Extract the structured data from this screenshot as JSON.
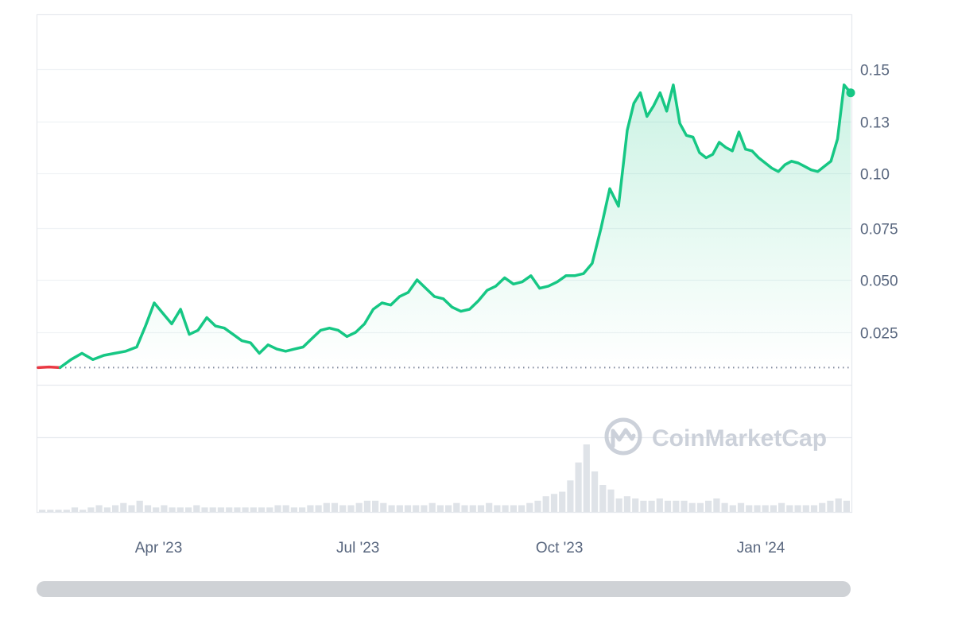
{
  "chart_data": {
    "type": "area",
    "x_type": "date",
    "x_range": [
      "2023-02-05",
      "2024-02-11"
    ],
    "y_ticks": [
      0.025,
      0.05,
      0.075,
      0.1,
      0.13,
      0.15
    ],
    "y_tick_labels": [
      "0.025",
      "0.050",
      "0.075",
      "0.10",
      "0.13",
      "0.15"
    ],
    "x_ticks": [
      "2023-04-01",
      "2023-07-01",
      "2023-10-01",
      "2024-01-01"
    ],
    "x_tick_labels": [
      "Apr '23",
      "Jul '23",
      "Oct '23",
      "Jan '24"
    ],
    "baseline": 0.0082,
    "series": [
      {
        "values_x": [
          "2023-02-05",
          "2023-02-10",
          "2023-02-15",
          "2023-02-20",
          "2023-02-25",
          "2023-03-02",
          "2023-03-07",
          "2023-03-12",
          "2023-03-17",
          "2023-03-22",
          "2023-03-26",
          "2023-03-30",
          "2023-04-03",
          "2023-04-07",
          "2023-04-11",
          "2023-04-15",
          "2023-04-19",
          "2023-04-23",
          "2023-04-27",
          "2023-05-01",
          "2023-05-05",
          "2023-05-09",
          "2023-05-13",
          "2023-05-17",
          "2023-05-21",
          "2023-05-25",
          "2023-05-29",
          "2023-06-02",
          "2023-06-06",
          "2023-06-10",
          "2023-06-14",
          "2023-06-18",
          "2023-06-22",
          "2023-06-26",
          "2023-06-30",
          "2023-07-04",
          "2023-07-08",
          "2023-07-12",
          "2023-07-16",
          "2023-07-20",
          "2023-07-24",
          "2023-07-28",
          "2023-08-01",
          "2023-08-05",
          "2023-08-09",
          "2023-08-13",
          "2023-08-17",
          "2023-08-21",
          "2023-08-25",
          "2023-08-29",
          "2023-09-02",
          "2023-09-06",
          "2023-09-10",
          "2023-09-14",
          "2023-09-18",
          "2023-09-22",
          "2023-09-26",
          "2023-09-30",
          "2023-10-04",
          "2023-10-08",
          "2023-10-12",
          "2023-10-16",
          "2023-10-20",
          "2023-10-24",
          "2023-10-28",
          "2023-11-01",
          "2023-11-04",
          "2023-11-07",
          "2023-11-10",
          "2023-11-13",
          "2023-11-16",
          "2023-11-19",
          "2023-11-22",
          "2023-11-25",
          "2023-11-28",
          "2023-12-01",
          "2023-12-04",
          "2023-12-07",
          "2023-12-10",
          "2023-12-13",
          "2023-12-16",
          "2023-12-19",
          "2023-12-22",
          "2023-12-25",
          "2023-12-28",
          "2023-12-31",
          "2024-01-03",
          "2024-01-06",
          "2024-01-09",
          "2024-01-12",
          "2024-01-15",
          "2024-01-18",
          "2024-01-21",
          "2024-01-24",
          "2024-01-27",
          "2024-01-30",
          "2024-02-02",
          "2024-02-05",
          "2024-02-08",
          "2024-02-11"
        ],
        "values_y": [
          0.0082,
          0.0085,
          0.0082,
          0.012,
          0.015,
          0.012,
          0.014,
          0.015,
          0.016,
          0.018,
          0.028,
          0.039,
          0.034,
          0.029,
          0.036,
          0.024,
          0.026,
          0.032,
          0.028,
          0.027,
          0.024,
          0.021,
          0.02,
          0.015,
          0.019,
          0.017,
          0.016,
          0.017,
          0.018,
          0.022,
          0.026,
          0.027,
          0.026,
          0.023,
          0.025,
          0.029,
          0.036,
          0.039,
          0.038,
          0.042,
          0.044,
          0.05,
          0.046,
          0.042,
          0.041,
          0.037,
          0.035,
          0.036,
          0.04,
          0.045,
          0.047,
          0.051,
          0.048,
          0.049,
          0.052,
          0.046,
          0.047,
          0.049,
          0.052,
          0.052,
          0.053,
          0.058,
          0.075,
          0.093,
          0.085,
          0.125,
          0.137,
          0.141,
          0.132,
          0.136,
          0.141,
          0.134,
          0.144,
          0.129,
          0.122,
          0.121,
          0.112,
          0.109,
          0.111,
          0.118,
          0.115,
          0.113,
          0.124,
          0.114,
          0.113,
          0.109,
          0.106,
          0.103,
          0.101,
          0.105,
          0.107,
          0.106,
          0.104,
          0.102,
          0.101,
          0.104,
          0.107,
          0.12,
          0.144,
          0.141
        ]
      }
    ],
    "volume": [
      1,
      1,
      1,
      1,
      2,
      1,
      2,
      3,
      2,
      3,
      4,
      3,
      5,
      3,
      2,
      3,
      2,
      2,
      2,
      3,
      2,
      2,
      2,
      2,
      2,
      2,
      2,
      2,
      2,
      3,
      3,
      2,
      2,
      3,
      3,
      4,
      4,
      3,
      3,
      4,
      5,
      5,
      4,
      3,
      3,
      3,
      3,
      3,
      4,
      3,
      3,
      4,
      3,
      3,
      3,
      4,
      3,
      3,
      3,
      3,
      4,
      5,
      7,
      8,
      9,
      14,
      22,
      30,
      18,
      12,
      10,
      6,
      7,
      6,
      5,
      5,
      6,
      5,
      5,
      5,
      4,
      4,
      5,
      6,
      4,
      3,
      4,
      3,
      3,
      3,
      3,
      4,
      3,
      3,
      3,
      3,
      4,
      5,
      6,
      5
    ],
    "colors": {
      "line": "#16c784",
      "baseline_segment": "#ea3943",
      "area_top": "#16c784",
      "volume": "#dfe3e8",
      "watermark": "#c7cdd6"
    }
  },
  "watermark": {
    "text": "CoinMarketCap",
    "icon": "coinmarketcap-logo-icon"
  }
}
